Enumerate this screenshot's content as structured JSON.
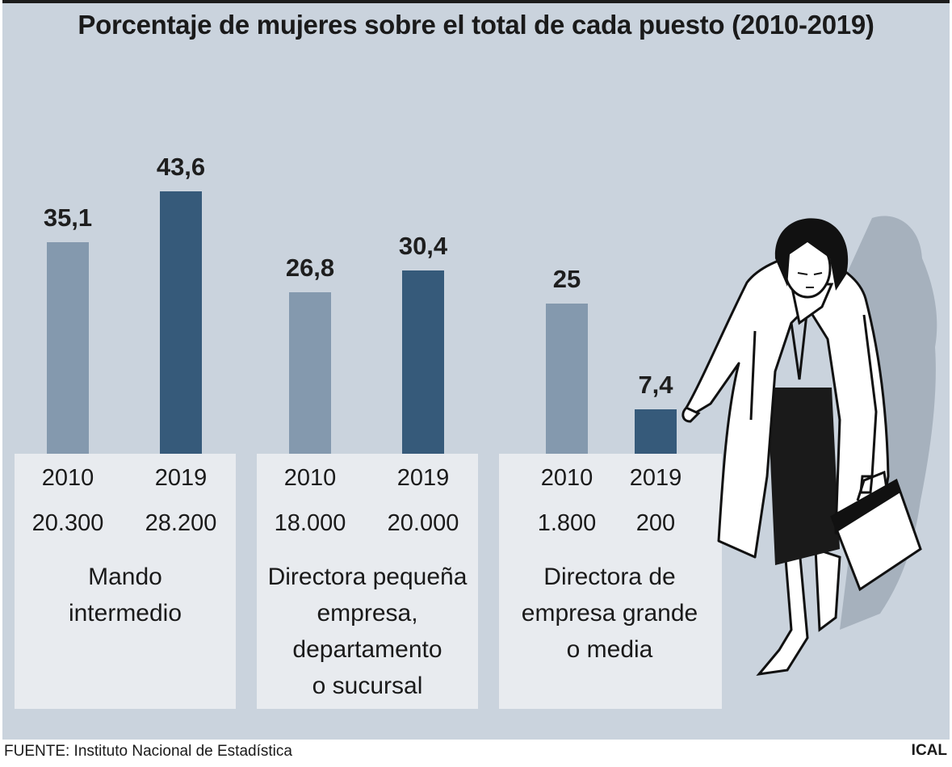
{
  "colors": {
    "bar_2010": "#8499ae",
    "bar_2019": "#365a7a",
    "panel": "#cad3dd",
    "box": "#e8ebef"
  },
  "chart_data": {
    "type": "bar",
    "title": "Porcentaje de mujeres sobre el total de cada puesto (2010-2019)",
    "categories": [
      "Mando intermedio",
      "Directora pequeña empresa, departamento o sucursal",
      "Directora de empresa grande o media"
    ],
    "series": [
      {
        "name": "2010",
        "values": [
          35.1,
          26.8,
          25
        ]
      },
      {
        "name": "2019",
        "values": [
          43.6,
          30.4,
          7.4
        ]
      }
    ],
    "value_labels": {
      "2010": [
        "35,1",
        "26,8",
        "25"
      ],
      "2019": [
        "43,6",
        "30,4",
        "7,4"
      ]
    },
    "counts": {
      "2010": [
        "20.300",
        "18.000",
        "1.800"
      ],
      "2019": [
        "28.200",
        "20.000",
        "200"
      ]
    },
    "groups": [
      {
        "name_lines": [
          "Mando",
          "intermedio"
        ]
      },
      {
        "name_lines": [
          "Directora pequeña",
          "empresa,",
          "departamento",
          "o sucursal"
        ]
      },
      {
        "name_lines": [
          "Directora de",
          "empresa grande",
          "o media"
        ]
      }
    ],
    "ylim": [
      0,
      43.6
    ],
    "grid": false,
    "legend": "none"
  },
  "source": "FUENTE: Instituto Nacional de Estadística",
  "credit": "ICAL",
  "illustration": {
    "icon": "businesswoman-with-briefcase-icon"
  }
}
